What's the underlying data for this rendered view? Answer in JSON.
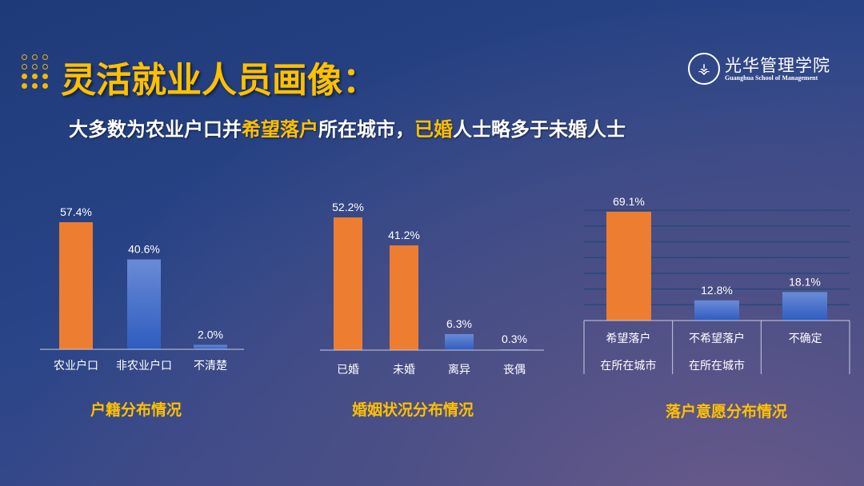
{
  "slide": {
    "title": "灵活就业人员画像：",
    "subtitle_parts": [
      {
        "text": "大多数为农业户口并",
        "highlight": false
      },
      {
        "text": "希望落户",
        "highlight": true
      },
      {
        "text": "所在城市，",
        "highlight": false
      },
      {
        "text": "已婚",
        "highlight": true
      },
      {
        "text": "人士略多于未婚人士",
        "highlight": false
      }
    ],
    "logo": {
      "cn": "光华管理学院",
      "en": "Guanghua School of Management"
    },
    "colors": {
      "accent": "#ffc000",
      "orange": "#ed7d31",
      "blue": "#4472c4"
    }
  },
  "chart_data": [
    {
      "type": "bar",
      "title": "户籍分布情况",
      "categories": [
        "农业户口",
        "非农业户口",
        "不清楚"
      ],
      "values": [
        57.4,
        40.6,
        2.0
      ],
      "labels": [
        "57.4%",
        "40.6%",
        "2.0%"
      ],
      "colors": [
        "#ed7d31",
        "#4472c4",
        "#4472c4"
      ],
      "unit": "%",
      "grid": false
    },
    {
      "type": "bar",
      "title": "婚姻状况分布情况",
      "categories": [
        "已婚",
        "未婚",
        "离异",
        "丧偶"
      ],
      "values": [
        52.2,
        41.2,
        6.3,
        0.3
      ],
      "labels": [
        "52.2%",
        "41.2%",
        "6.3%",
        "0.3%"
      ],
      "colors": [
        "#ed7d31",
        "#ed7d31",
        "#4472c4",
        "#4472c4"
      ],
      "unit": "%",
      "grid": false
    },
    {
      "type": "bar",
      "title": "落户意愿分布情况",
      "categories": [
        [
          "希望落户",
          "在所在城市"
        ],
        [
          "不希望落户",
          "在所在城市"
        ],
        [
          "不确定"
        ]
      ],
      "values": [
        69.1,
        12.8,
        18.1
      ],
      "labels": [
        "69.1%",
        "12.8%",
        "18.1%"
      ],
      "colors": [
        "#ed7d31",
        "#4472c4",
        "#4472c4"
      ],
      "unit": "%",
      "grid": true,
      "ylim": [
        0,
        70
      ]
    }
  ]
}
